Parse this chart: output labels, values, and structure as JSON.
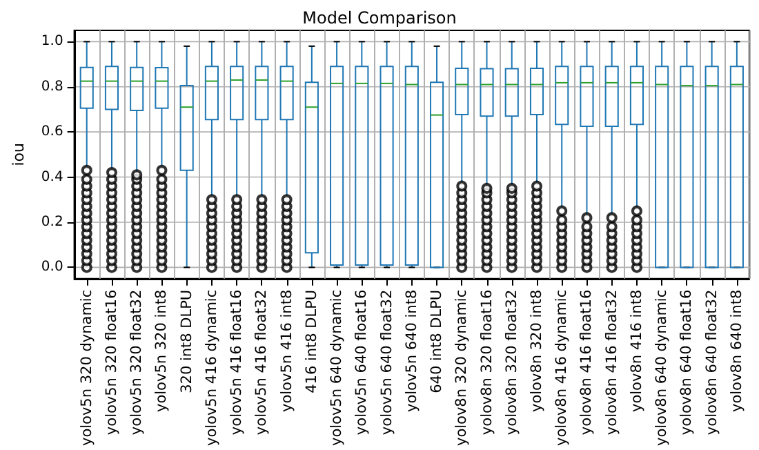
{
  "chart_data": {
    "type": "box",
    "title": "Model Comparison",
    "ylabel": "iou",
    "categories": [
      "yolov5n 320 dynamic",
      "yolov5n 320 float16",
      "yolov5n 320 float32",
      "yolov5n 320 int8",
      "320 int8 DLPU",
      "yolov5n 416 dynamic",
      "yolov5n 416 float16",
      "yolov5n 416 float32",
      "yolov5n 416 int8",
      "416 int8 DLPU",
      "yolov5n 640 dynamic",
      "yolov5n 640 float16",
      "yolov5n 640 float32",
      "yolov5n 640 int8",
      "640 int8 DLPU",
      "yolov8n 320 dynamic",
      "yolov8n 320 float16",
      "yolov8n 320 float32",
      "yolov8n 320 int8",
      "yolov8n 416 dynamic",
      "yolov8n 416 float16",
      "yolov8n 416 float32",
      "yolov8n 416 int8",
      "yolov8n 640 dynamic",
      "yolov8n 640 float16",
      "yolov8n 640 float32",
      "yolov8n 640 int8"
    ],
    "series": [
      {
        "color": "#1f77b4",
        "boxes": [
          {
            "low": 0.44,
            "q1": 0.705,
            "median": 0.825,
            "q3": 0.886,
            "high": 1.0,
            "outliers": [
              0,
              0.03,
              0.06,
              0.09,
              0.12,
              0.15,
              0.18,
              0.21,
              0.24,
              0.27,
              0.3,
              0.33,
              0.36,
              0.39,
              0.43
            ]
          },
          {
            "low": 0.43,
            "q1": 0.7,
            "median": 0.825,
            "q3": 0.89,
            "high": 1.0,
            "outliers": [
              0,
              0.03,
              0.06,
              0.09,
              0.12,
              0.15,
              0.18,
              0.21,
              0.24,
              0.27,
              0.3,
              0.33,
              0.36,
              0.39,
              0.42
            ]
          },
          {
            "low": 0.42,
            "q1": 0.695,
            "median": 0.825,
            "q3": 0.886,
            "high": 1.0,
            "outliers": [
              0,
              0.03,
              0.06,
              0.09,
              0.12,
              0.15,
              0.18,
              0.21,
              0.24,
              0.27,
              0.3,
              0.33,
              0.36,
              0.39,
              0.41
            ]
          },
          {
            "low": 0.44,
            "q1": 0.705,
            "median": 0.825,
            "q3": 0.885,
            "high": 1.0,
            "outliers": [
              0,
              0.03,
              0.06,
              0.09,
              0.12,
              0.15,
              0.18,
              0.21,
              0.24,
              0.27,
              0.3,
              0.33,
              0.36,
              0.39,
              0.43
            ]
          },
          {
            "low": 0,
            "q1": 0.43,
            "median": 0.71,
            "q3": 0.805,
            "high": 0.98
          },
          {
            "low": 0.31,
            "q1": 0.655,
            "median": 0.825,
            "q3": 0.89,
            "high": 1.0,
            "outliers": [
              0,
              0.03,
              0.06,
              0.09,
              0.12,
              0.15,
              0.18,
              0.21,
              0.24,
              0.27,
              0.3
            ]
          },
          {
            "low": 0.31,
            "q1": 0.655,
            "median": 0.83,
            "q3": 0.89,
            "high": 1.0,
            "outliers": [
              0,
              0.03,
              0.06,
              0.09,
              0.12,
              0.15,
              0.18,
              0.21,
              0.24,
              0.27,
              0.3
            ]
          },
          {
            "low": 0.31,
            "q1": 0.655,
            "median": 0.83,
            "q3": 0.89,
            "high": 1.0,
            "outliers": [
              0,
              0.03,
              0.06,
              0.09,
              0.12,
              0.15,
              0.18,
              0.21,
              0.24,
              0.27,
              0.3
            ]
          },
          {
            "low": 0.31,
            "q1": 0.655,
            "median": 0.825,
            "q3": 0.89,
            "high": 1.0,
            "outliers": [
              0,
              0.03,
              0.06,
              0.09,
              0.12,
              0.15,
              0.18,
              0.21,
              0.24,
              0.27,
              0.3
            ]
          },
          {
            "low": 0,
            "q1": 0.065,
            "median": 0.71,
            "q3": 0.82,
            "high": 0.98
          },
          {
            "low": 0,
            "q1": 0.01,
            "median": 0.815,
            "q3": 0.89,
            "high": 1.0
          },
          {
            "low": 0,
            "q1": 0.01,
            "median": 0.815,
            "q3": 0.89,
            "high": 1.0
          },
          {
            "low": 0,
            "q1": 0.01,
            "median": 0.815,
            "q3": 0.89,
            "high": 1.0
          },
          {
            "low": 0,
            "q1": 0.01,
            "median": 0.81,
            "q3": 0.89,
            "high": 1.0
          },
          {
            "low": 0,
            "q1": 0,
            "median": 0.675,
            "q3": 0.82,
            "high": 0.98
          },
          {
            "low": 0.37,
            "q1": 0.677,
            "median": 0.81,
            "q3": 0.882,
            "high": 1.0,
            "outliers": [
              0,
              0.03,
              0.06,
              0.09,
              0.12,
              0.15,
              0.18,
              0.21,
              0.24,
              0.27,
              0.3,
              0.33,
              0.36
            ]
          },
          {
            "low": 0.36,
            "q1": 0.67,
            "median": 0.81,
            "q3": 0.88,
            "high": 1.0,
            "outliers": [
              0,
              0.03,
              0.06,
              0.09,
              0.12,
              0.15,
              0.18,
              0.21,
              0.24,
              0.27,
              0.3,
              0.33,
              0.35
            ]
          },
          {
            "low": 0.36,
            "q1": 0.67,
            "median": 0.81,
            "q3": 0.88,
            "high": 1.0,
            "outliers": [
              0,
              0.03,
              0.06,
              0.09,
              0.12,
              0.15,
              0.18,
              0.21,
              0.24,
              0.27,
              0.3,
              0.33,
              0.35
            ]
          },
          {
            "low": 0.37,
            "q1": 0.677,
            "median": 0.81,
            "q3": 0.882,
            "high": 1.0,
            "outliers": [
              0,
              0.03,
              0.06,
              0.09,
              0.12,
              0.15,
              0.18,
              0.21,
              0.24,
              0.27,
              0.3,
              0.33,
              0.36
            ]
          },
          {
            "low": 0.26,
            "q1": 0.633,
            "median": 0.818,
            "q3": 0.89,
            "high": 1.0,
            "outliers": [
              0,
              0.03,
              0.06,
              0.09,
              0.12,
              0.15,
              0.18,
              0.21,
              0.25
            ]
          },
          {
            "low": 0.23,
            "q1": 0.625,
            "median": 0.818,
            "q3": 0.89,
            "high": 1.0,
            "outliers": [
              0,
              0.03,
              0.06,
              0.09,
              0.12,
              0.15,
              0.18,
              0.22
            ]
          },
          {
            "low": 0.23,
            "q1": 0.625,
            "median": 0.818,
            "q3": 0.89,
            "high": 1.0,
            "outliers": [
              0,
              0.03,
              0.06,
              0.09,
              0.12,
              0.15,
              0.18,
              0.22
            ]
          },
          {
            "low": 0.26,
            "q1": 0.633,
            "median": 0.818,
            "q3": 0.89,
            "high": 1.0,
            "outliers": [
              0,
              0.03,
              0.06,
              0.09,
              0.12,
              0.15,
              0.18,
              0.21,
              0.25
            ]
          },
          {
            "low": 0,
            "q1": 0,
            "median": 0.81,
            "q3": 0.89,
            "high": 1.0
          },
          {
            "low": 0,
            "q1": 0,
            "median": 0.805,
            "q3": 0.89,
            "high": 1.0
          },
          {
            "low": 0,
            "q1": 0,
            "median": 0.805,
            "q3": 0.89,
            "high": 1.0
          },
          {
            "low": 0,
            "q1": 0,
            "median": 0.81,
            "q3": 0.89,
            "high": 1.0
          }
        ]
      }
    ],
    "ylim": [
      -0.05,
      1.05
    ],
    "yticks": [
      {
        "value": 0,
        "label": "0.0"
      },
      {
        "value": 0.2,
        "label": "0.2"
      },
      {
        "value": 0.4,
        "label": "0.4"
      },
      {
        "value": 0.6,
        "label": "0.6"
      },
      {
        "value": 0.8,
        "label": "0.8"
      },
      {
        "value": 1,
        "label": "1.0"
      }
    ],
    "grid": true,
    "marker": "circle"
  }
}
